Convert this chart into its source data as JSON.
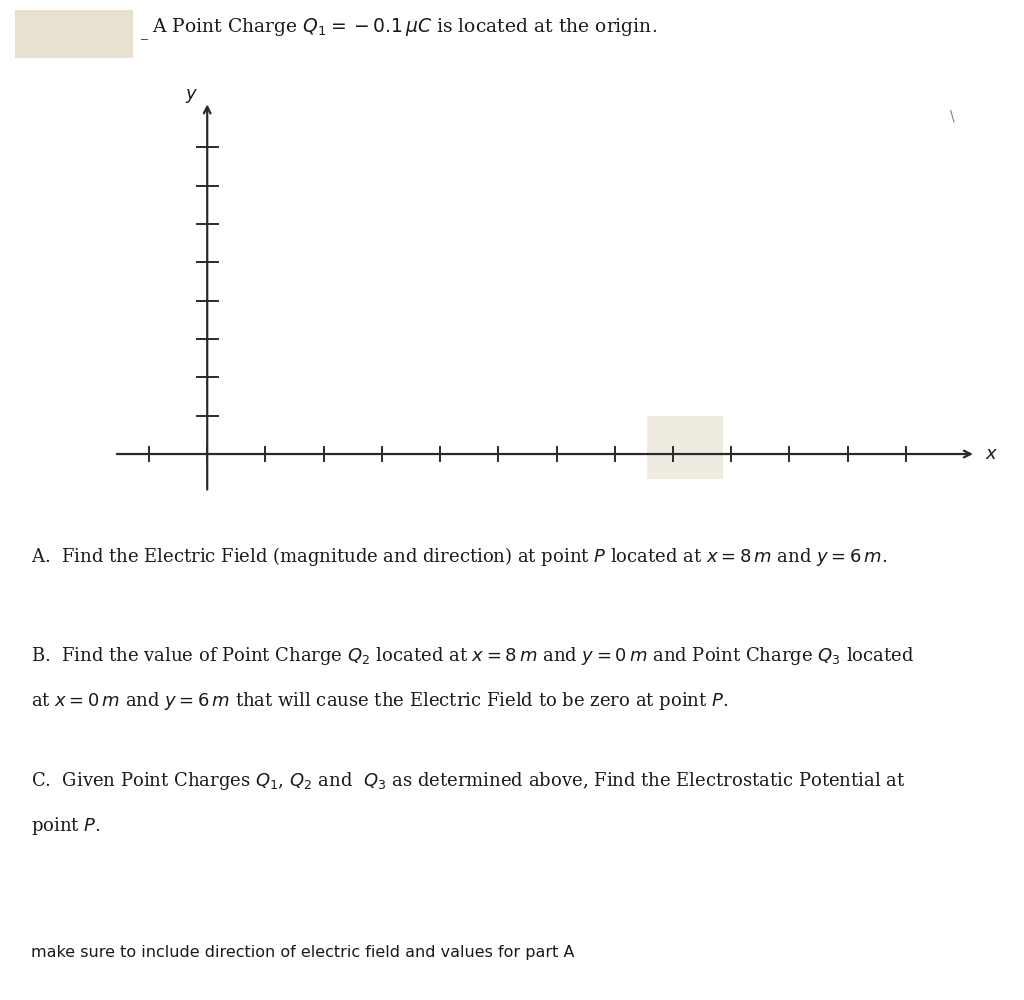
{
  "title_plain": "A Point Charge ",
  "title_math": "$Q_1 = -0.1\\,\\mu C$",
  "title_end": " is located at the origin.",
  "axis_label_x": "$x$",
  "axis_label_y": "$y$",
  "part_A": "A.  Find the Electric Field (magnitude and direction) at point $P$ located at $x = 8\\,m$ and $y = 6\\,m$.",
  "part_B_line1": "B.  Find the value of Point Charge $Q_2$ located at $x = 8\\,m$ and $y = 0\\,m$ and Point Charge $Q_3$ located",
  "part_B_line2": "at $x = 0\\,m$ and $y = 6\\,m$ that will cause the Electric Field to be zero at point $P$.",
  "part_C_line1": "C.  Given Point Charges $Q_1$, $Q_2$ and  $Q_3$ as determined above, Find the Electrostatic Potential at",
  "part_C_line2": "point $P$.",
  "footer": "make sure to include direction of electric field and values for part A",
  "background_color": "#ffffff",
  "text_color": "#1a1a1a",
  "axis_color": "#2a2a2a",
  "highlight_rect_color": "#e8e0d0",
  "point_highlight_color": "#f0ebe0"
}
